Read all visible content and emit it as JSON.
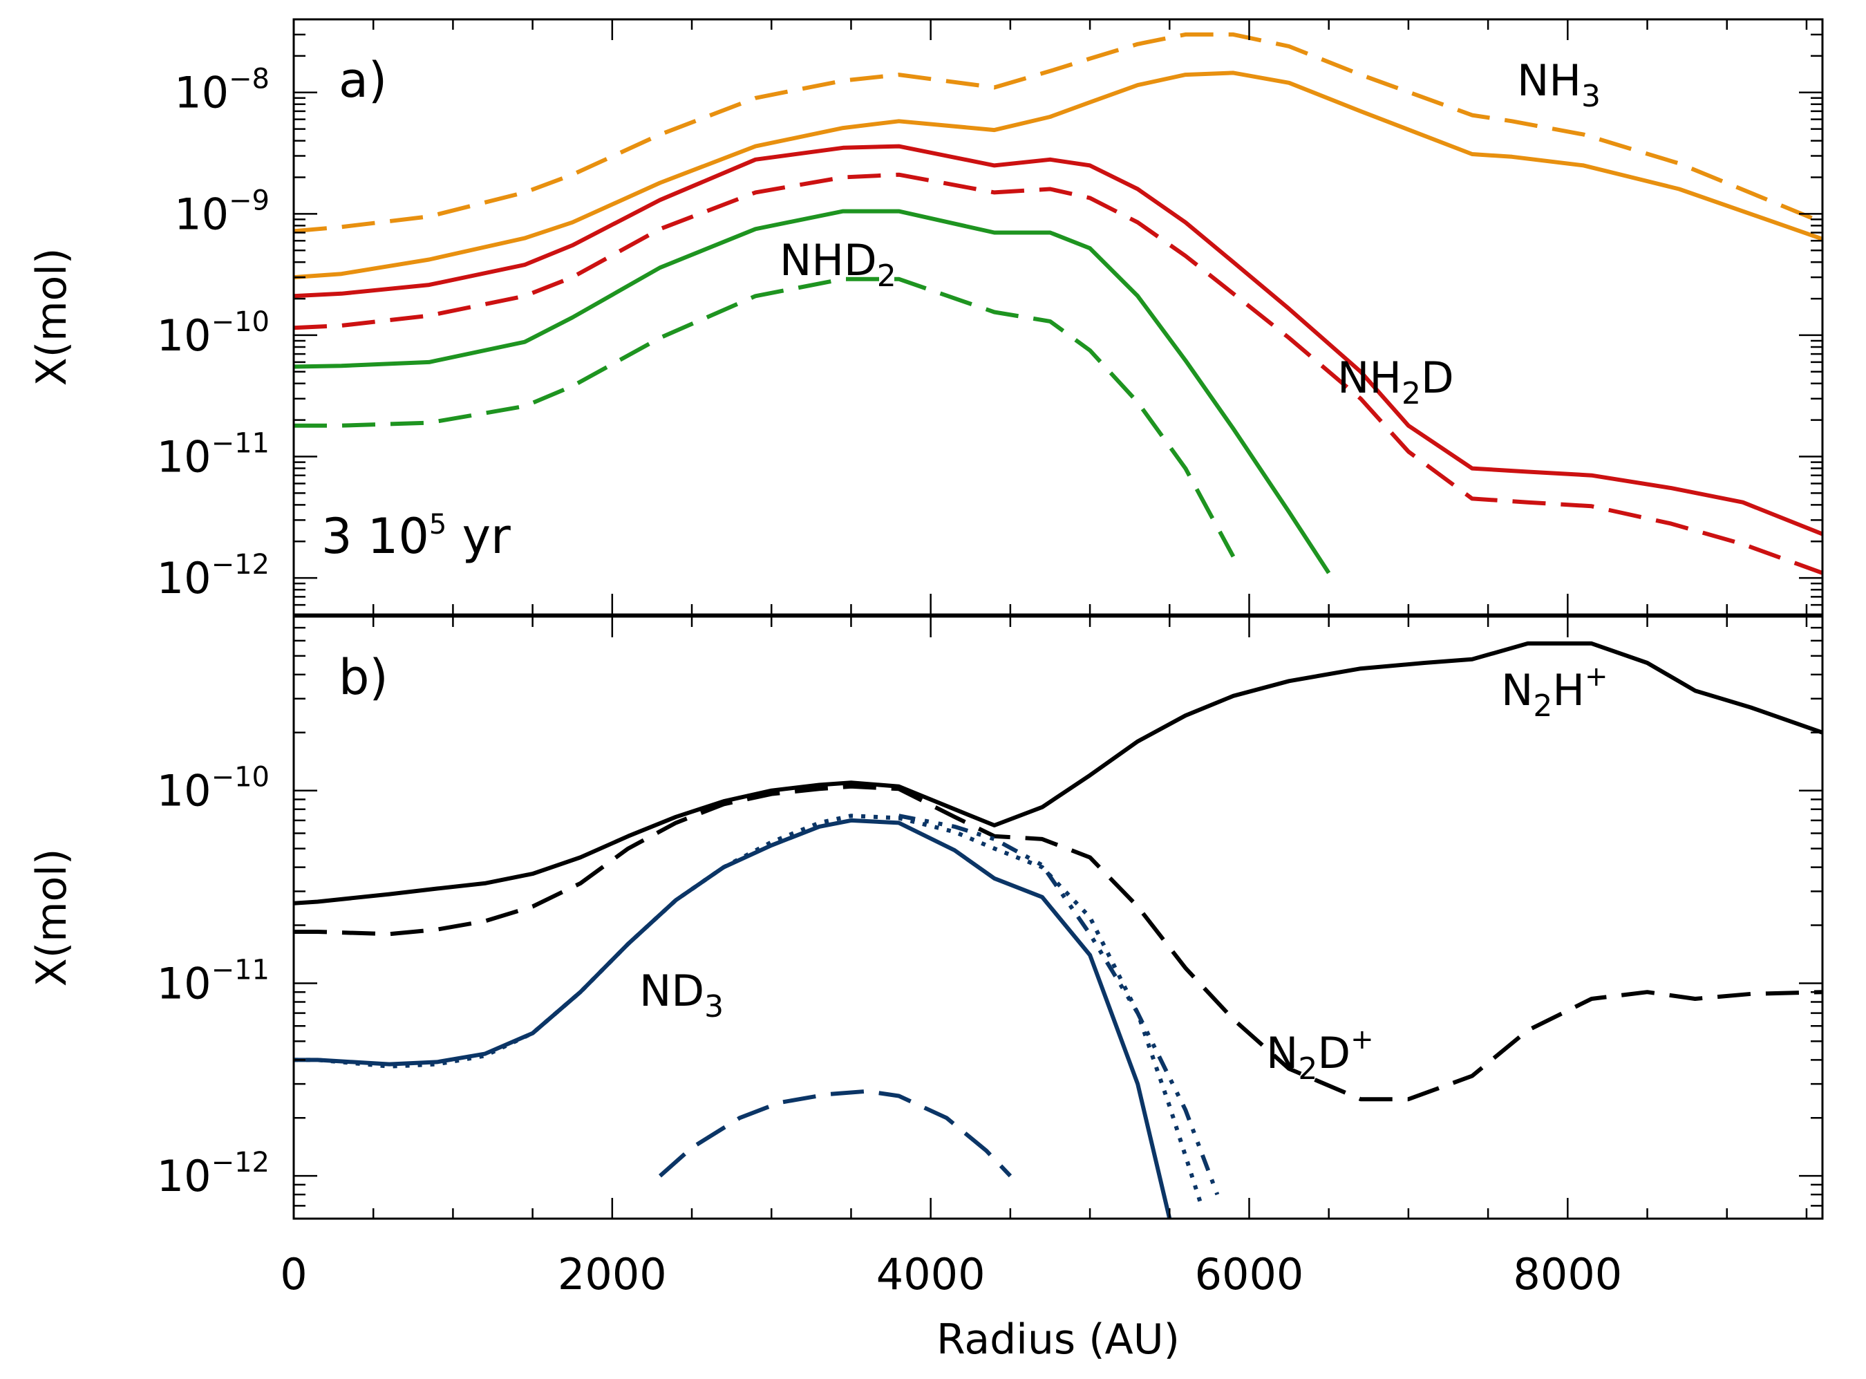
{
  "chart_data": [
    {
      "panel": "a",
      "type": "line",
      "panel_label": "a)",
      "annotation": {
        "base": "3  10",
        "exp": "5",
        "unit": " yr"
      },
      "ylabel": "X(mol)",
      "yscale": "log",
      "ylim": [
        5e-13,
        4e-08
      ],
      "xlim": [
        0,
        9600
      ],
      "yticks": [
        {
          "base": "10",
          "exp": "−8",
          "value": 1e-08
        },
        {
          "base": "10",
          "exp": "−9",
          "value": 1e-09
        },
        {
          "base": "10",
          "exp": "−10",
          "value": 1e-10
        },
        {
          "base": "10",
          "exp": "−11",
          "value": 1e-11
        },
        {
          "base": "10",
          "exp": "−12",
          "value": 1e-12
        }
      ],
      "labels": [
        {
          "id": "nh3",
          "base": "NH",
          "sub": "3",
          "sup": ""
        },
        {
          "id": "nhd2",
          "base": "NHD",
          "sub": "2",
          "sup": ""
        },
        {
          "id": "nh2d",
          "base": "NH",
          "sub": "2",
          "tail": "D",
          "sup": ""
        }
      ],
      "series": [
        {
          "name": "NH3 dashed",
          "color": "#e8900f",
          "dash": "dashed",
          "x": [
            0,
            300,
            850,
            1450,
            1750,
            2300,
            2900,
            3450,
            3800,
            4400,
            4750,
            5000,
            5300,
            5600,
            5900,
            6250,
            6700,
            7400,
            7650,
            8100,
            8700,
            9600
          ],
          "y": [
            7.2e-10,
            7.8e-10,
            9.5e-10,
            1.5e-09,
            2.1e-09,
            4.5e-09,
            9e-09,
            1.25e-08,
            1.4e-08,
            1.1e-08,
            1.5e-08,
            1.9e-08,
            2.5e-08,
            3e-08,
            3e-08,
            2.4e-08,
            1.4e-08,
            6.5e-09,
            5.8e-09,
            4.5e-09,
            2.6e-09,
            8.5e-10
          ]
        },
        {
          "name": "NH3 solid",
          "color": "#e8900f",
          "dash": "solid",
          "x": [
            0,
            300,
            850,
            1450,
            1750,
            2300,
            2900,
            3450,
            3800,
            4400,
            4750,
            5000,
            5300,
            5600,
            5900,
            6250,
            6700,
            7400,
            7650,
            8100,
            8700,
            9600
          ],
          "y": [
            3e-10,
            3.2e-10,
            4.2e-10,
            6.3e-10,
            8.5e-10,
            1.8e-09,
            3.6e-09,
            5.1e-09,
            5.8e-09,
            4.9e-09,
            6.3e-09,
            8.3e-09,
            1.15e-08,
            1.4e-08,
            1.45e-08,
            1.2e-08,
            7e-09,
            3.1e-09,
            2.95e-09,
            2.5e-09,
            1.6e-09,
            6.2e-10
          ]
        },
        {
          "name": "NH2D solid",
          "color": "#cc1111",
          "dash": "solid",
          "x": [
            0,
            300,
            850,
            1450,
            1750,
            2300,
            2900,
            3450,
            3800,
            4400,
            4750,
            5000,
            5300,
            5600,
            5900,
            6250,
            6700,
            7000,
            7400,
            7750,
            8150,
            8650,
            9100,
            9600
          ],
          "y": [
            2.1e-10,
            2.2e-10,
            2.6e-10,
            3.8e-10,
            5.5e-10,
            1.3e-09,
            2.8e-09,
            3.5e-09,
            3.6e-09,
            2.5e-09,
            2.8e-09,
            2.5e-09,
            1.6e-09,
            8.5e-10,
            4e-10,
            1.65e-10,
            5e-11,
            1.8e-11,
            8e-12,
            7.5e-12,
            7e-12,
            5.5e-12,
            4.2e-12,
            2.3e-12
          ]
        },
        {
          "name": "NH2D dashed",
          "color": "#cc1111",
          "dash": "dashed",
          "x": [
            0,
            300,
            850,
            1450,
            1750,
            2300,
            2900,
            3450,
            3800,
            4400,
            4750,
            5000,
            5300,
            5600,
            5900,
            6250,
            6700,
            7000,
            7400,
            7750,
            8150,
            8650,
            9100,
            9600
          ],
          "y": [
            1.15e-10,
            1.2e-10,
            1.45e-10,
            2.1e-10,
            3e-10,
            7.5e-10,
            1.5e-09,
            2e-09,
            2.1e-09,
            1.5e-09,
            1.6e-09,
            1.35e-09,
            8.5e-10,
            4.5e-10,
            2.2e-10,
            9.5e-11,
            3e-11,
            1.1e-11,
            4.5e-12,
            4.2e-12,
            3.9e-12,
            2.8e-12,
            1.9e-12,
            1.1e-12
          ]
        },
        {
          "name": "NHD2 solid",
          "color": "#1e9420",
          "dash": "solid",
          "x": [
            0,
            300,
            850,
            1450,
            1750,
            2300,
            2900,
            3450,
            3800,
            4400,
            4750,
            5000,
            5300,
            5600,
            5900,
            6250,
            6500
          ],
          "y": [
            5.5e-11,
            5.6e-11,
            6e-11,
            8.8e-11,
            1.4e-10,
            3.6e-10,
            7.5e-10,
            1.05e-09,
            1.05e-09,
            7e-10,
            7e-10,
            5.2e-10,
            2.1e-10,
            6.2e-11,
            1.7e-11,
            3.5e-12,
            1.1e-12
          ]
        },
        {
          "name": "NHD2 dashed",
          "color": "#1e9420",
          "dash": "dashed",
          "x": [
            0,
            300,
            850,
            1450,
            1750,
            2300,
            2900,
            3450,
            3800,
            4400,
            4750,
            5000,
            5300,
            5600,
            5900
          ],
          "y": [
            1.8e-11,
            1.8e-11,
            1.9e-11,
            2.6e-11,
            3.8e-11,
            9.5e-11,
            2.1e-10,
            2.9e-10,
            2.9e-10,
            1.55e-10,
            1.3e-10,
            7.5e-11,
            2.8e-11,
            8e-12,
            1.5e-12
          ]
        }
      ]
    },
    {
      "panel": "b",
      "type": "line",
      "panel_label": "b)",
      "xlabel": "Radius (AU)",
      "ylabel": "X(mol)",
      "yscale": "log",
      "ylim": [
        6e-13,
        8e-10
      ],
      "xlim": [
        0,
        9600
      ],
      "xticks": [
        0,
        2000,
        4000,
        6000,
        8000
      ],
      "yticks": [
        {
          "base": "10",
          "exp": "−10",
          "value": 1e-10
        },
        {
          "base": "10",
          "exp": "−11",
          "value": 1e-11
        },
        {
          "base": "10",
          "exp": "−12",
          "value": 1e-12
        }
      ],
      "labels": [
        {
          "id": "n2h",
          "base": "N",
          "sub": "2",
          "tail": "H",
          "sup": "+"
        },
        {
          "id": "n2d",
          "base": "N",
          "sub": "2",
          "tail": "D",
          "sup": "+"
        },
        {
          "id": "nd3",
          "base": "ND",
          "sub": "3",
          "sup": ""
        }
      ],
      "series": [
        {
          "name": "N2H+ solid",
          "color": "#000000",
          "dash": "solid",
          "x": [
            0,
            150,
            600,
            900,
            1200,
            1500,
            1800,
            2100,
            2400,
            2700,
            3000,
            3300,
            3500,
            3800,
            4150,
            4400,
            4700,
            5000,
            5300,
            5600,
            5900,
            6250,
            6700,
            7100,
            7400,
            7750,
            8150,
            8500,
            8800,
            9150,
            9600
          ],
          "y": [
            2.6e-11,
            2.65e-11,
            2.9e-11,
            3.1e-11,
            3.3e-11,
            3.7e-11,
            4.5e-11,
            5.8e-11,
            7.3e-11,
            8.8e-11,
            1e-10,
            1.07e-10,
            1.1e-10,
            1.05e-10,
            8e-11,
            6.6e-11,
            8.2e-11,
            1.2e-10,
            1.8e-10,
            2.45e-10,
            3.1e-10,
            3.7e-10,
            4.3e-10,
            4.6e-10,
            4.8e-10,
            5.8e-10,
            5.8e-10,
            4.6e-10,
            3.3e-10,
            2.7e-10,
            2e-10
          ]
        },
        {
          "name": "N2D+ dashed",
          "color": "#000000",
          "dash": "dashed",
          "x": [
            0,
            150,
            600,
            900,
            1200,
            1500,
            1800,
            2100,
            2400,
            2700,
            3000,
            3300,
            3500,
            3800,
            4150,
            4400,
            4700,
            5000,
            5300,
            5600,
            5900,
            6250,
            6700,
            7000,
            7400,
            7750,
            8150,
            8500,
            8800,
            9150,
            9600
          ],
          "y": [
            1.85e-11,
            1.85e-11,
            1.8e-11,
            1.9e-11,
            2.1e-11,
            2.5e-11,
            3.3e-11,
            5e-11,
            6.8e-11,
            8.5e-11,
            9.6e-11,
            1.02e-10,
            1.05e-10,
            1.02e-10,
            7.3e-11,
            5.8e-11,
            5.6e-11,
            4.5e-11,
            2.5e-11,
            1.2e-11,
            6.5e-12,
            3.6e-12,
            2.5e-12,
            2.5e-12,
            3.3e-12,
            5.7e-12,
            8.3e-12,
            9e-12,
            8.3e-12,
            8.8e-12,
            9e-12
          ]
        },
        {
          "name": "ND3 solid",
          "color": "#0b3566",
          "dash": "solid",
          "x": [
            0,
            150,
            600,
            900,
            1200,
            1500,
            1800,
            2100,
            2400,
            2700,
            3000,
            3300,
            3500,
            3800,
            4150,
            4400,
            4700,
            5000,
            5300,
            5500
          ],
          "y": [
            4e-12,
            4e-12,
            3.8e-12,
            3.9e-12,
            4.3e-12,
            5.5e-12,
            9e-12,
            1.6e-11,
            2.7e-11,
            4e-11,
            5.2e-11,
            6.5e-11,
            7e-11,
            6.8e-11,
            4.9e-11,
            3.5e-11,
            2.8e-11,
            1.4e-11,
            3e-12,
            6e-13
          ]
        },
        {
          "name": "ND3 dotted",
          "color": "#0b3566",
          "dash": "dotted",
          "x": [
            0,
            150,
            600,
            900,
            1200,
            1500,
            1800,
            2100,
            2400,
            2700,
            3000,
            3300,
            3500,
            3800,
            4150,
            4400,
            4700,
            5000,
            5300,
            5500,
            5700
          ],
          "y": [
            4e-12,
            4e-12,
            3.7e-12,
            3.8e-12,
            4.2e-12,
            5.5e-12,
            9e-12,
            1.6e-11,
            2.7e-11,
            4e-11,
            5.4e-11,
            6.8e-11,
            7.4e-11,
            7.2e-11,
            6.1e-11,
            5e-11,
            4e-11,
            2.2e-11,
            7e-12,
            2.3e-12,
            7e-13
          ]
        },
        {
          "name": "ND3 dash-dot",
          "color": "#0b3566",
          "dash": "dashdot",
          "x": [
            3800,
            4150,
            4400,
            4700,
            5000,
            5300,
            5600,
            5800
          ],
          "y": [
            7.4e-11,
            6.5e-11,
            5.6e-11,
            4.1e-11,
            1.8e-11,
            7e-12,
            2.2e-12,
            8e-13
          ]
        },
        {
          "name": "ND3 deut dashed",
          "color": "#0b3566",
          "dash": "dashed",
          "x": [
            2300,
            2500,
            2800,
            3050,
            3350,
            3600,
            3800,
            4100,
            4350,
            4500
          ],
          "y": [
            1e-12,
            1.4e-12,
            2e-12,
            2.4e-12,
            2.65e-12,
            2.75e-12,
            2.6e-12,
            2e-12,
            1.35e-12,
            1e-12
          ]
        }
      ]
    }
  ]
}
